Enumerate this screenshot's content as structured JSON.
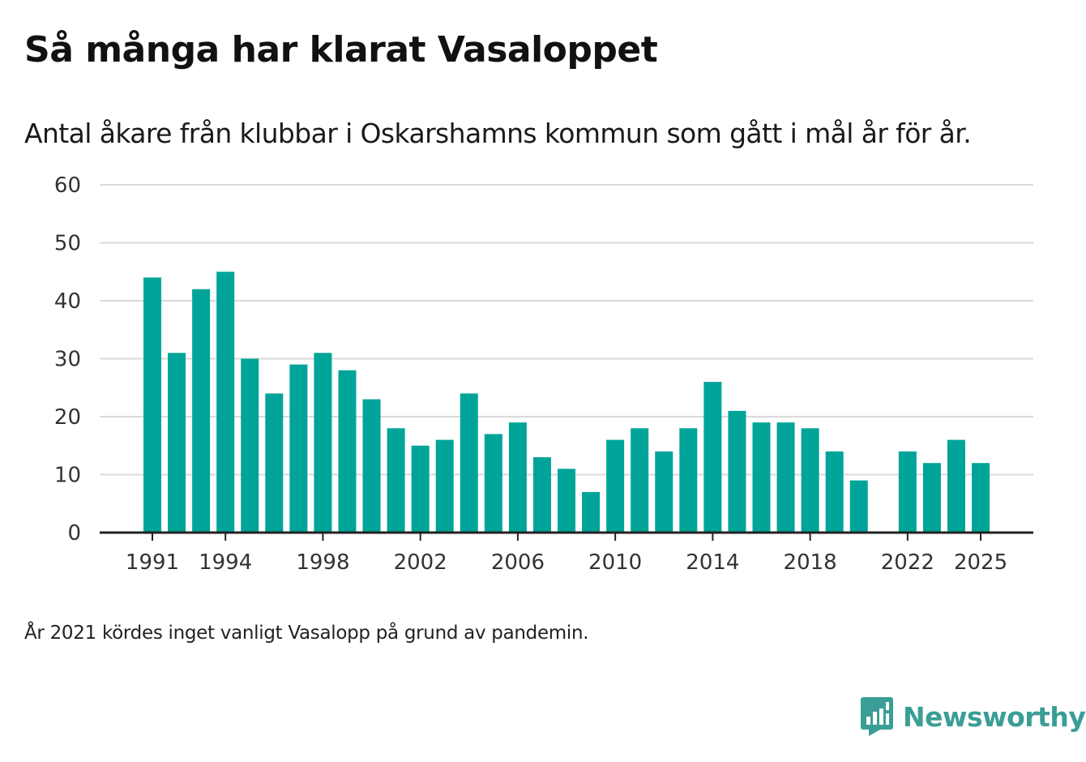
{
  "title": "Så många har klarat Vasaloppet",
  "subtitle": "Antal åkare från klubbar i Oskarshamns kommun som gått i mål år för år.",
  "note": "År 2021 kördes inget vanligt Vasalopp på grund av pandemin.",
  "brand": {
    "name": "Newsworthy",
    "color": "#3a9e96",
    "logo_icon": "newsworthy-logo-icon"
  },
  "colors": {
    "bar": "#00a499",
    "grid": "#d9d9d9",
    "axis": "#222222"
  },
  "chart_data": {
    "type": "bar",
    "title": "Så många har klarat Vasaloppet",
    "xlabel": "",
    "ylabel": "",
    "ylim": [
      0,
      60
    ],
    "yticks": [
      0,
      10,
      20,
      30,
      40,
      50,
      60
    ],
    "xticks": [
      "1991",
      "1994",
      "1998",
      "2002",
      "2006",
      "2010",
      "2014",
      "2018",
      "2022",
      "2025"
    ],
    "grid": true,
    "categories": [
      "1991",
      "1992",
      "1993",
      "1994",
      "1995",
      "1996",
      "1997",
      "1998",
      "1999",
      "2000",
      "2001",
      "2002",
      "2003",
      "2004",
      "2005",
      "2006",
      "2007",
      "2008",
      "2009",
      "2010",
      "2011",
      "2012",
      "2013",
      "2014",
      "2015",
      "2016",
      "2017",
      "2018",
      "2019",
      "2020",
      "2021",
      "2022",
      "2023",
      "2024",
      "2025"
    ],
    "values": [
      44,
      31,
      42,
      45,
      30,
      24,
      29,
      31,
      28,
      23,
      18,
      15,
      16,
      24,
      17,
      19,
      13,
      11,
      7,
      16,
      18,
      14,
      18,
      26,
      21,
      19,
      19,
      18,
      14,
      9,
      null,
      14,
      12,
      16,
      12
    ]
  }
}
